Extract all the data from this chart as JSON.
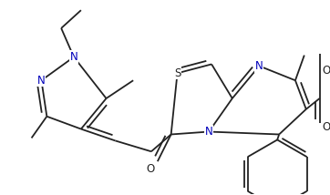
{
  "bg_color": "#ffffff",
  "line_color": "#222222",
  "N_color": "#0000bb",
  "lw": 1.3,
  "fs": 8.5,
  "figsize": [
    3.62,
    2.14
  ],
  "xlim": [
    0,
    362
  ],
  "ylim": [
    0,
    214
  ]
}
